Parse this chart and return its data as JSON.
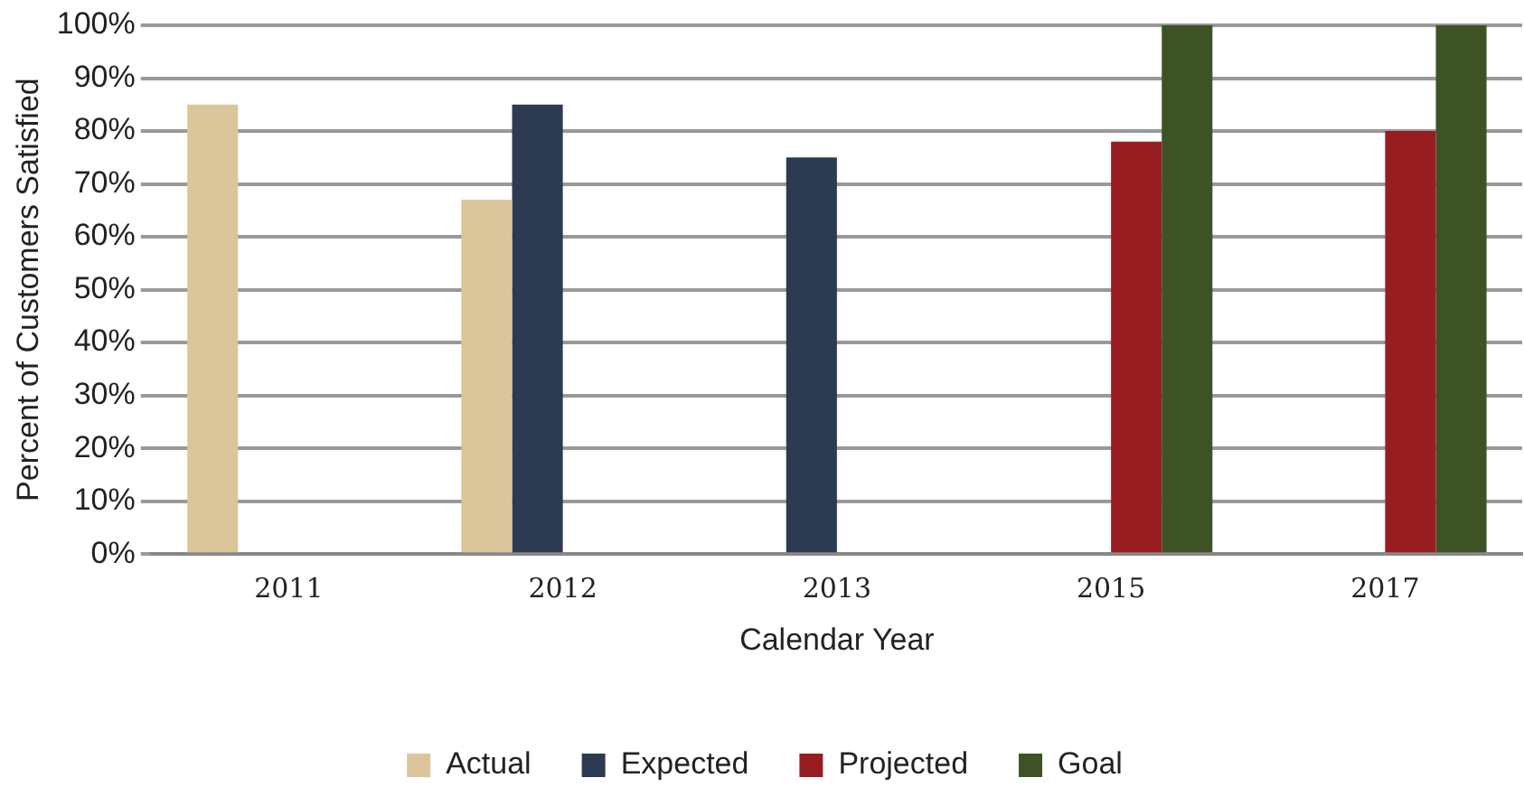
{
  "chart_data": {
    "type": "bar",
    "xlabel": "Calendar Year",
    "ylabel": "Percent of Customers Satisfied",
    "categories": [
      "2011",
      "2012",
      "2013",
      "2015",
      "2017"
    ],
    "series": [
      {
        "name": "Actual",
        "color": "#dbc59b",
        "values": [
          85,
          67,
          null,
          null,
          null
        ]
      },
      {
        "name": "Expected",
        "color": "#2c3a52",
        "values": [
          null,
          85,
          75,
          null,
          null
        ]
      },
      {
        "name": "Projected",
        "color": "#981d21",
        "values": [
          null,
          null,
          null,
          78,
          80
        ]
      },
      {
        "name": "Goal",
        "color": "#3d5326",
        "values": [
          null,
          null,
          null,
          100,
          100
        ]
      }
    ],
    "ylim": [
      0,
      100
    ],
    "yticks": [
      {
        "value": 0,
        "label": "0%"
      },
      {
        "value": 10,
        "label": "10%"
      },
      {
        "value": 20,
        "label": "20%"
      },
      {
        "value": 30,
        "label": "30%"
      },
      {
        "value": 40,
        "label": "40%"
      },
      {
        "value": 50,
        "label": "50%"
      },
      {
        "value": 60,
        "label": "60%"
      },
      {
        "value": 70,
        "label": "70%"
      },
      {
        "value": 80,
        "label": "80%"
      },
      {
        "value": 90,
        "label": "90%"
      },
      {
        "value": 100,
        "label": "100%"
      }
    ],
    "grid": "y",
    "legend": "bottom"
  }
}
